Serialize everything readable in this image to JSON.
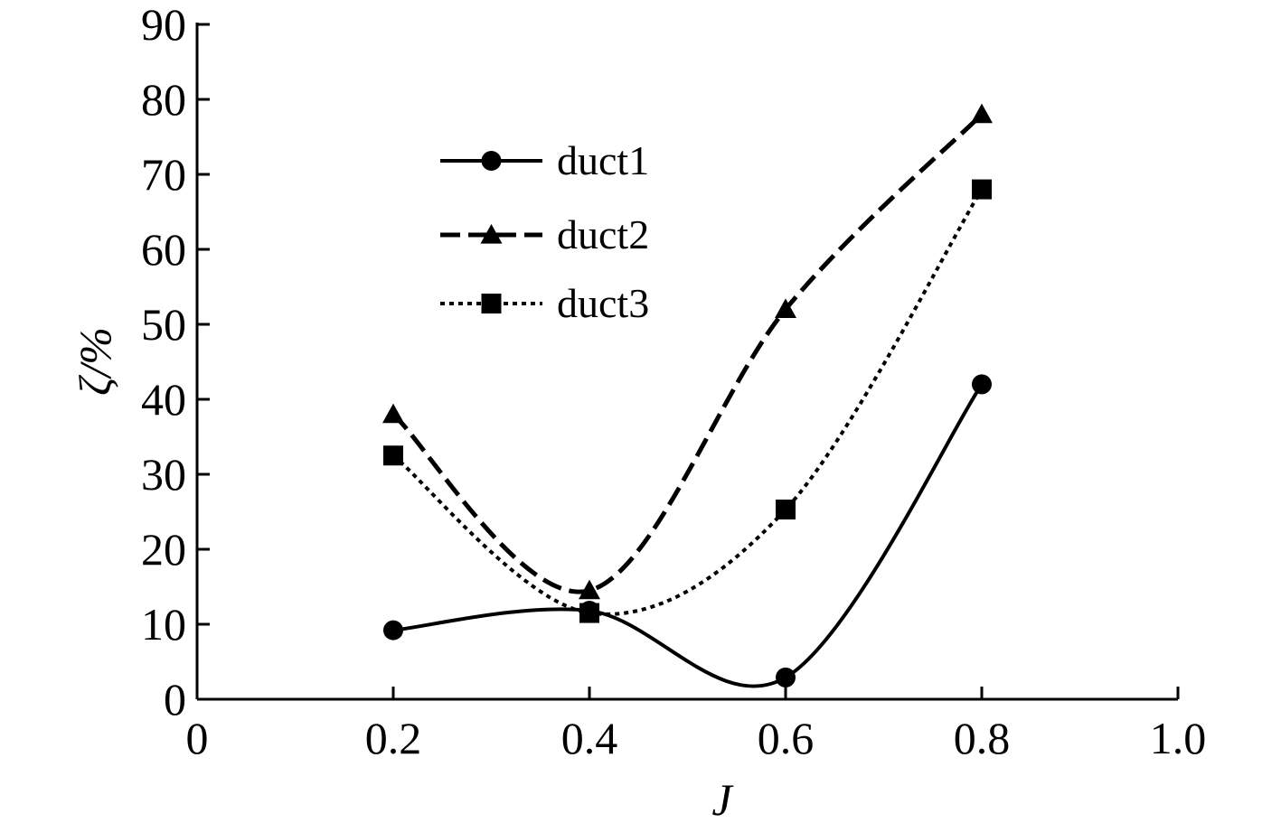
{
  "chart_data": {
    "type": "line",
    "title": "",
    "xlabel": "J",
    "ylabel": "ζ/%",
    "xlim": [
      0,
      1.0
    ],
    "ylim": [
      0,
      90
    ],
    "x_ticks": [
      "0",
      "0.2",
      "0.4",
      "0.6",
      "0.8",
      "1.0"
    ],
    "y_ticks": [
      "0",
      "10",
      "20",
      "30",
      "40",
      "50",
      "60",
      "70",
      "80",
      "90"
    ],
    "grid": false,
    "legend_position": "top-left",
    "x": [
      0.2,
      0.4,
      0.6,
      0.8
    ],
    "series": [
      {
        "name": "duct1",
        "values": [
          9.2,
          11.8,
          2.9,
          42.0
        ],
        "marker": "circle",
        "line_style": "solid",
        "color": "#000000"
      },
      {
        "name": "duct2",
        "values": [
          38.0,
          14.5,
          52.0,
          78.0
        ],
        "marker": "triangle",
        "line_style": "dashed",
        "color": "#000000"
      },
      {
        "name": "duct3",
        "values": [
          32.5,
          11.5,
          25.3,
          68.0
        ],
        "marker": "square",
        "line_style": "dotted",
        "color": "#000000"
      }
    ]
  }
}
